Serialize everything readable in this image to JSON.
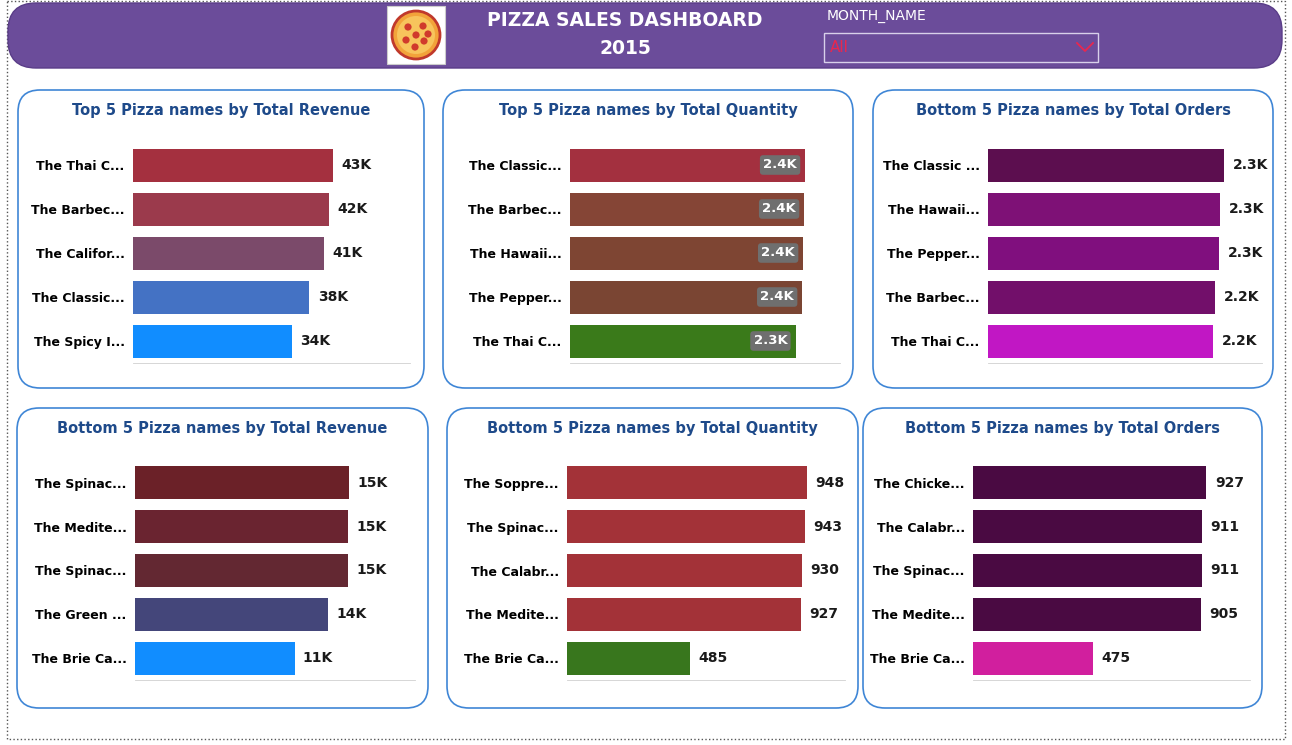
{
  "header": {
    "title": "PIZZA SALES DASHBOARD",
    "subtitle": "2015",
    "filter_label": "MONTH_NAME",
    "filter_value": "All"
  },
  "chart_data": [
    {
      "type": "bar",
      "orientation": "horizontal",
      "title": "Top 5 Pizza names by Total Revenue",
      "categories": [
        "The Thai C...",
        "The Barbec...",
        "The Califor...",
        "The Classic...",
        "The Spicy I..."
      ],
      "values": [
        43400,
        42400,
        41400,
        38200,
        34500
      ],
      "value_labels": [
        "43K",
        "42K",
        "41K",
        "38K",
        "34K"
      ],
      "colors": [
        "#a4303f",
        "#9b3a4c",
        "#7b4a6a",
        "#4472c4",
        "#118dff"
      ],
      "xlim": [
        0,
        60000
      ],
      "data_labels": true,
      "tick_labels": "y"
    },
    {
      "type": "bar",
      "orientation": "horizontal",
      "title": "Top 5 Pizza names by Total Quantity",
      "categories": [
        "The Classic...",
        "The Barbec...",
        "The Hawaii...",
        "The Pepper...",
        "The Thai C..."
      ],
      "values": [
        2440,
        2430,
        2420,
        2410,
        2340
      ],
      "value_labels": [
        "2.4K",
        "2.4K",
        "2.4K",
        "2.4K",
        "2.3K"
      ],
      "colors": [
        "#a3303f",
        "#854536",
        "#7e4533",
        "#7a4533",
        "#3a7a1a"
      ],
      "xlim": [
        0,
        2800
      ],
      "data_labels": true,
      "tick_labels": "y"
    },
    {
      "type": "bar",
      "orientation": "horizontal",
      "title": "Bottom 5 Pizza names by Total Orders",
      "categories": [
        "The Classic ...",
        "The Hawaii...",
        "The Pepper...",
        "The Barbec...",
        "The Thai C..."
      ],
      "values": [
        2330,
        2290,
        2280,
        2240,
        2220
      ],
      "value_labels": [
        "2.3K",
        "2.3K",
        "2.3K",
        "2.2K",
        "2.2K"
      ],
      "colors": [
        "#5c0e4f",
        "#7e1176",
        "#800f7e",
        "#720f6a",
        "#c117c4"
      ],
      "xlim": [
        0,
        2700
      ],
      "data_labels": true,
      "tick_labels": "y"
    },
    {
      "type": "bar",
      "orientation": "horizontal",
      "title": "Bottom 5 Pizza names by Total Revenue",
      "categories": [
        "The Spinac...",
        "The Medite...",
        "The Spinac...",
        "The Green ...",
        "The Brie Ca..."
      ],
      "values": [
        15300,
        15200,
        15200,
        13800,
        11400
      ],
      "value_labels": [
        "15K",
        "15K",
        "15K",
        "14K",
        "11K"
      ],
      "colors": [
        "#6b2128",
        "#6a2430",
        "#632832",
        "#44467a",
        "#118dff"
      ],
      "xlim": [
        0,
        20000
      ],
      "data_labels": true,
      "tick_labels": "y"
    },
    {
      "type": "bar",
      "orientation": "horizontal",
      "title": "Bottom 5 Pizza names by Total Quantity",
      "categories": [
        "The Soppre...",
        "The Spinac...",
        "The Calabr...",
        "The Medite...",
        "The Brie Ca..."
      ],
      "values": [
        948,
        943,
        930,
        927,
        485
      ],
      "colors": [
        "#a33238",
        "#a33238",
        "#a33238",
        "#a33238",
        "#38761d"
      ],
      "xlim": [
        0,
        1100
      ],
      "data_labels": true,
      "tick_labels": "y"
    },
    {
      "type": "bar",
      "orientation": "horizontal",
      "title": "Bottom 5 Pizza names by Total Orders",
      "categories": [
        "The Chicke...",
        "The Calabr...",
        "The Spinac...",
        "The Medite...",
        "The Brie Ca..."
      ],
      "values": [
        927,
        911,
        911,
        905,
        475
      ],
      "colors": [
        "#4a0a42",
        "#4a0a42",
        "#4a0a42",
        "#4a0a42",
        "#d11f9e"
      ],
      "xlim": [
        0,
        1100
      ],
      "data_labels": true,
      "tick_labels": "y"
    }
  ]
}
